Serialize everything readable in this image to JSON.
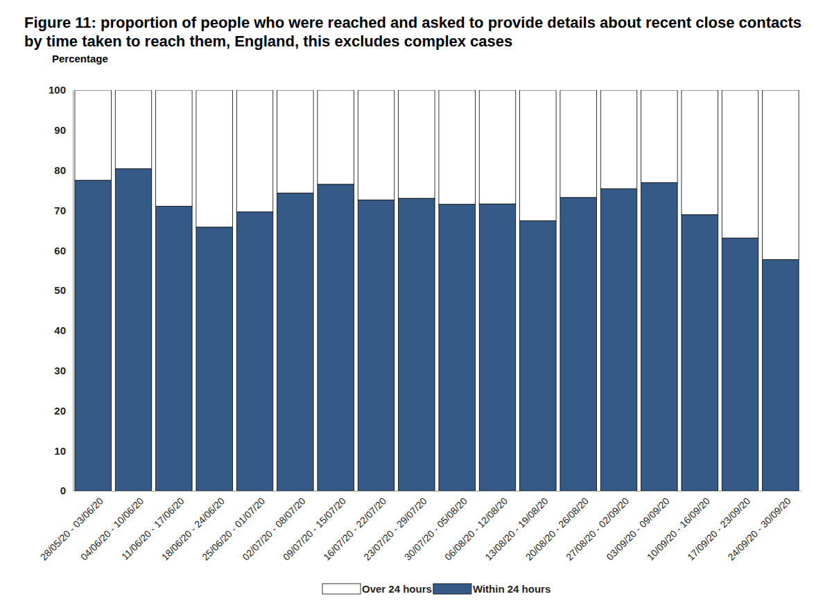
{
  "chart_data": {
    "type": "bar",
    "title": "Figure 11: proportion of people who were reached and asked to provide details about recent close contacts by time taken to reach them, England, this excludes complex cases",
    "y_label": "Percentage",
    "categories": [
      "28/05/20 - 03/06/20",
      "04/06/20 - 10/06/20",
      "11/06/20 - 17/06/20",
      "18/06/20 - 24/06/20",
      "25/06/20 - 01/07/20",
      "02/07/20 - 08/07/20",
      "09/07/20 - 15/07/20",
      "16/07/20 - 22/07/20",
      "23/07/20 - 29/07/20",
      "30/07/20 - 05/08/20",
      "06/08/20 - 12/08/20",
      "13/08/20 - 19/08/20",
      "20/08/20 - 26/08/20",
      "27/08/20 - 02/09/20",
      "03/09/20 - 09/09/20",
      "10/09/20 - 16/09/20",
      "17/09/20 - 23/09/20",
      "24/09/20 - 30/09/20"
    ],
    "series": [
      {
        "name": "Over 24 hours",
        "color": "#ffffff",
        "values": [
          22.5,
          19.6,
          29.0,
          34.2,
          30.4,
          25.7,
          23.5,
          27.4,
          27.0,
          28.5,
          28.4,
          32.6,
          26.8,
          24.6,
          23.1,
          31.1,
          36.9,
          42.3
        ]
      },
      {
        "name": "Within 24 hours",
        "color": "#365a88",
        "values": [
          77.5,
          80.4,
          71.0,
          65.8,
          69.6,
          74.3,
          76.5,
          72.6,
          73.0,
          71.5,
          71.6,
          67.4,
          73.2,
          75.4,
          76.9,
          68.9,
          63.1,
          57.7
        ]
      }
    ],
    "ylim": [
      0,
      100
    ],
    "yticks": [
      0,
      10,
      20,
      30,
      40,
      50,
      60,
      70,
      80,
      90,
      100
    ],
    "stacked": true,
    "grid": false,
    "legend": "bottom"
  }
}
